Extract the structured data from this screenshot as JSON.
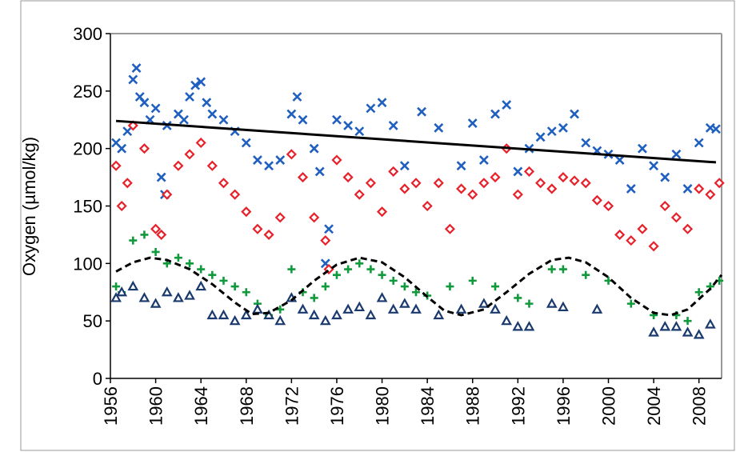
{
  "chart_data": {
    "type": "scatter",
    "y_label": "Oxygen (µmol/kg)",
    "xlim": [
      1956,
      2010
    ],
    "ylim": [
      0,
      300
    ],
    "xticks": [
      1956,
      1960,
      1964,
      1968,
      1972,
      1976,
      1980,
      1984,
      1988,
      1992,
      1996,
      2000,
      2004,
      2008
    ],
    "yticks": [
      0,
      50,
      100,
      150,
      200,
      250,
      300
    ],
    "series": [
      {
        "kind": "scatter",
        "marker": "x",
        "color": "#1f5fbf",
        "x": [
          1956.5,
          1957,
          1957.5,
          1958,
          1958.3,
          1958.6,
          1959,
          1959.5,
          1960,
          1960.5,
          1960.8,
          1961,
          1962,
          1962.5,
          1963,
          1963.5,
          1964,
          1964.5,
          1965,
          1966,
          1967,
          1968,
          1969,
          1970,
          1971,
          1972,
          1972.5,
          1973,
          1974,
          1974.5,
          1975,
          1975.3,
          1976,
          1977,
          1978,
          1979,
          1980,
          1981,
          1982,
          1983.5,
          1985,
          1987,
          1988,
          1989,
          1990,
          1991,
          1992,
          1993,
          1994,
          1995,
          1996,
          1997,
          1998,
          1999,
          2000,
          2001,
          2002,
          2003,
          2004,
          2005,
          2006,
          2007,
          2008,
          2009,
          2009.5
        ],
        "values": [
          205,
          200,
          215,
          260,
          270,
          245,
          240,
          225,
          235,
          175,
          160,
          220,
          230,
          225,
          245,
          255,
          258,
          240,
          230,
          225,
          215,
          205,
          190,
          185,
          190,
          230,
          245,
          225,
          200,
          180,
          100,
          130,
          225,
          220,
          215,
          235,
          240,
          220,
          185,
          232,
          218,
          185,
          222,
          190,
          230,
          238,
          180,
          200,
          210,
          215,
          218,
          230,
          205,
          198,
          195,
          190,
          165,
          200,
          185,
          175,
          195,
          165,
          205,
          218,
          217
        ]
      },
      {
        "kind": "scatter",
        "marker": "diamond",
        "color": "#e8202a",
        "x": [
          1956.5,
          1957,
          1957.5,
          1958,
          1959,
          1960,
          1960.5,
          1961,
          1962,
          1963,
          1964,
          1965,
          1966,
          1967,
          1968,
          1969,
          1970,
          1971,
          1972,
          1973,
          1974,
          1975,
          1975.3,
          1976,
          1977,
          1978,
          1979,
          1980,
          1981,
          1982,
          1983,
          1984,
          1985,
          1986,
          1987,
          1988,
          1989,
          1990,
          1991,
          1992,
          1993,
          1994,
          1995,
          1996,
          1997,
          1998,
          1999,
          2000,
          2001,
          2002,
          2003,
          2004,
          2005,
          2006,
          2007,
          2008,
          2009,
          2009.8
        ],
        "values": [
          185,
          150,
          170,
          220,
          200,
          130,
          125,
          160,
          185,
          195,
          205,
          185,
          170,
          160,
          145,
          130,
          125,
          140,
          195,
          175,
          140,
          120,
          95,
          190,
          175,
          160,
          170,
          145,
          180,
          165,
          170,
          150,
          170,
          130,
          165,
          160,
          170,
          175,
          200,
          160,
          180,
          170,
          165,
          175,
          172,
          170,
          155,
          150,
          125,
          120,
          130,
          115,
          150,
          140,
          130,
          165,
          160,
          170
        ]
      },
      {
        "kind": "scatter",
        "marker": "plus",
        "color": "#109a3c",
        "x": [
          1956.5,
          1957,
          1958,
          1959,
          1960,
          1961,
          1962,
          1963,
          1964,
          1965,
          1966,
          1967,
          1968,
          1969,
          1970,
          1971,
          1972,
          1973,
          1974,
          1975,
          1976,
          1977,
          1978,
          1979,
          1980,
          1981,
          1982,
          1983,
          1984,
          1986,
          1988,
          1990,
          1992,
          1993,
          1995,
          1996,
          1998,
          2000,
          2002,
          2004,
          2006,
          2007,
          2008,
          2009,
          2009.8
        ],
        "values": [
          80,
          75,
          120,
          125,
          110,
          100,
          105,
          100,
          95,
          90,
          85,
          80,
          75,
          65,
          55,
          60,
          95,
          75,
          70,
          80,
          90,
          95,
          100,
          95,
          90,
          85,
          80,
          75,
          72,
          80,
          85,
          80,
          70,
          65,
          95,
          95,
          90,
          85,
          65,
          55,
          55,
          50,
          75,
          80,
          85
        ]
      },
      {
        "kind": "scatter",
        "marker": "triangle",
        "color": "#1a3a6e",
        "x": [
          1956.5,
          1957,
          1958,
          1959,
          1960,
          1961,
          1962,
          1963,
          1964,
          1965,
          1966,
          1967,
          1968,
          1969,
          1970,
          1971,
          1972,
          1973,
          1974,
          1975,
          1976,
          1977,
          1978,
          1979,
          1980,
          1981,
          1982,
          1983,
          1985,
          1987,
          1989,
          1990,
          1991,
          1992,
          1993,
          1995,
          1996,
          1999,
          2004,
          2005,
          2006,
          2007,
          2008,
          2009
        ],
        "values": [
          70,
          75,
          80,
          70,
          65,
          75,
          70,
          72,
          80,
          55,
          55,
          50,
          55,
          60,
          55,
          50,
          70,
          60,
          55,
          50,
          55,
          60,
          62,
          55,
          70,
          60,
          65,
          60,
          55,
          60,
          65,
          60,
          50,
          45,
          45,
          65,
          62,
          60,
          40,
          45,
          45,
          40,
          38,
          47
        ]
      },
      {
        "kind": "line",
        "dash": false,
        "color": "#000000",
        "x": [
          1956.5,
          2009.5
        ],
        "values": [
          224,
          188
        ]
      },
      {
        "kind": "line",
        "dash": true,
        "color": "#000000",
        "x": [
          1956.5,
          1958,
          1959.5,
          1961,
          1963,
          1965,
          1967,
          1968.5,
          1970,
          1972,
          1974,
          1976,
          1978,
          1980,
          1982,
          1984,
          1985.5,
          1987,
          1989,
          1991,
          1993,
          1995,
          1996.5,
          1998,
          2000,
          2002,
          2004,
          2005.5,
          2007,
          2009,
          2010
        ],
        "values": [
          93,
          101,
          105,
          103,
          95,
          82,
          66,
          56,
          57,
          68,
          85,
          99,
          105,
          101,
          88,
          71,
          59,
          55,
          60,
          75,
          91,
          103,
          105,
          101,
          88,
          70,
          57,
          55,
          60,
          78,
          90
        ]
      }
    ]
  }
}
